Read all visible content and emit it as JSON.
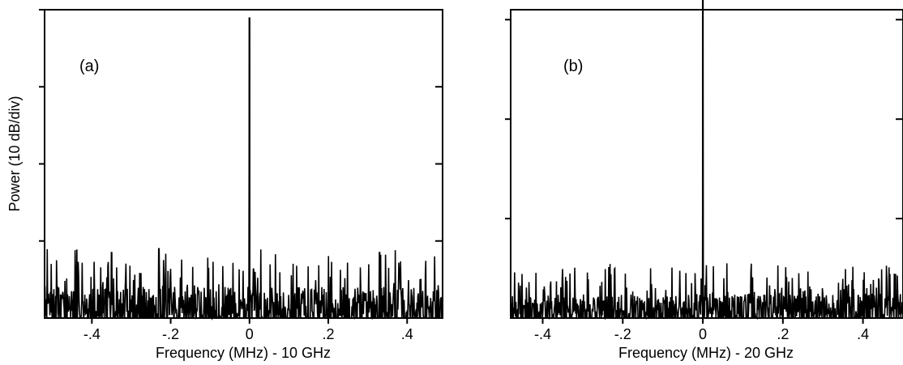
{
  "chart_data": [
    {
      "type": "line",
      "panel_label": "(a)",
      "xlabel": "Frequency (MHz)  - 10 GHz",
      "ylabel": "Power (10 dB/div)",
      "xlim": [
        -0.52,
        0.49
      ],
      "ylim": [
        0,
        4.0
      ],
      "x_tick_values": [
        -0.4,
        -0.2,
        0,
        0.2,
        0.4
      ],
      "x_tick_labels": [
        "-.4",
        "-.2",
        "0",
        ".2",
        ".4"
      ],
      "y_tick_values": [
        1,
        2,
        3,
        4
      ],
      "y_tick_labels_shown": false,
      "grid": false,
      "legend": "none",
      "series": [
        {
          "peak_x": 0.0,
          "peak_y": 3.9,
          "noise_floor": 0.0,
          "noise_max": 0.9,
          "notable_noise_spikes": [
            {
              "x": -0.49,
              "y": 0.75
            },
            {
              "x": -0.35,
              "y": 0.85
            },
            {
              "x": -0.23,
              "y": 0.9
            },
            {
              "x": 0.33,
              "y": 0.85
            },
            {
              "x": 0.37,
              "y": 0.88
            },
            {
              "x": 0.47,
              "y": 0.8
            }
          ]
        }
      ]
    },
    {
      "type": "line",
      "panel_label": "(b)",
      "xlabel": "Frequency (MHz)  - 20 GHz",
      "ylabel": "",
      "xlim": [
        -0.48,
        0.5
      ],
      "ylim": [
        0,
        3.1
      ],
      "x_tick_values": [
        -0.4,
        -0.2,
        0,
        0.2,
        0.4
      ],
      "x_tick_labels": [
        "-.4",
        "-.2",
        "0",
        ".2",
        ".4"
      ],
      "y_tick_values": [
        1,
        2,
        3
      ],
      "y_tick_labels_shown": false,
      "grid": false,
      "legend": "none",
      "series": [
        {
          "peak_x": 0.0,
          "peak_y": 3.2,
          "noise_floor": 0.0,
          "noise_max": 0.55,
          "notable_noise_spikes": [
            {
              "x": -0.22,
              "y": 0.5
            },
            {
              "x": 0.06,
              "y": 0.55
            },
            {
              "x": 0.24,
              "y": 0.45
            }
          ]
        }
      ]
    }
  ]
}
